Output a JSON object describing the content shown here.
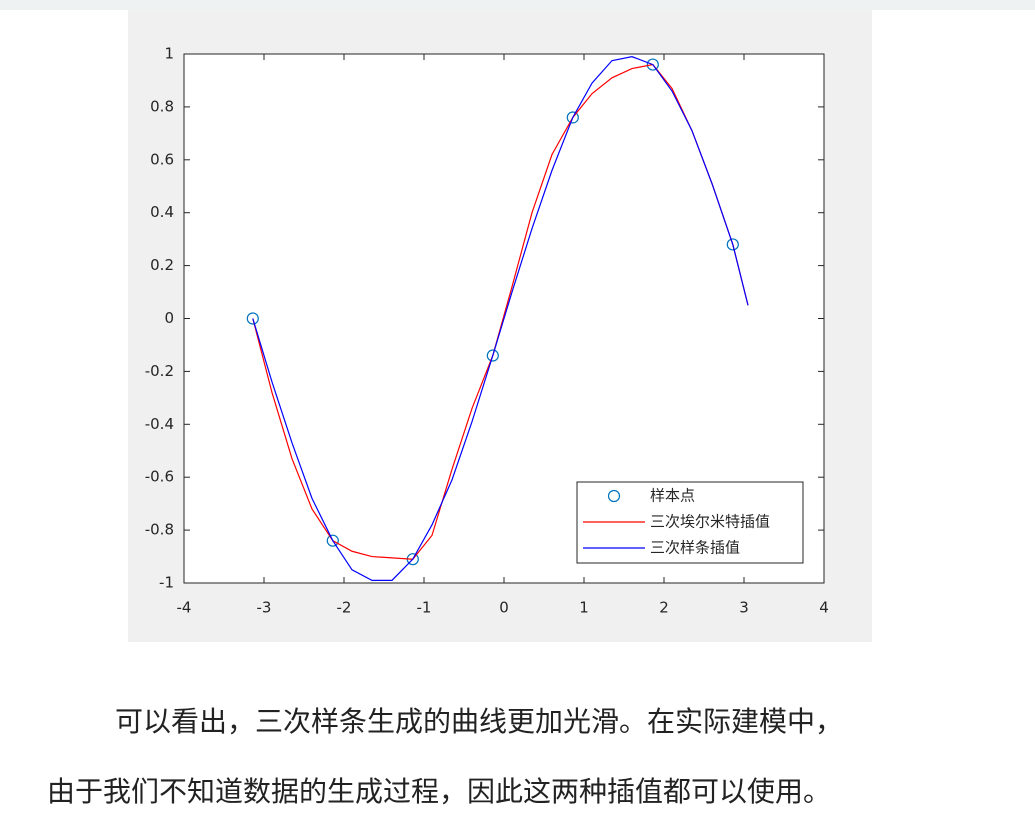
{
  "chart_data": {
    "type": "line",
    "xlim": [
      -4,
      4
    ],
    "xticks": [
      -4,
      -3,
      -2,
      -1,
      0,
      1,
      2,
      3,
      4
    ],
    "ylim": [
      -1,
      1
    ],
    "yticks": [
      -1,
      -0.8,
      -0.6,
      -0.4,
      -0.2,
      0,
      0.2,
      0.4,
      0.6,
      0.8,
      1
    ],
    "legend": "lower right",
    "series": [
      {
        "name": "样本点",
        "color": "#0072bd",
        "marker": "o",
        "line": false,
        "x": [
          -3.14,
          -2.14,
          -1.14,
          -0.14,
          0.86,
          1.86,
          2.86
        ],
        "values": [
          0,
          -0.84,
          -0.91,
          -0.14,
          0.76,
          0.96,
          0.28
        ]
      },
      {
        "name": "三次埃尔米特插值",
        "color": "#ff0000",
        "line": true,
        "x": [
          -3.14,
          -2.9,
          -2.65,
          -2.4,
          -2.14,
          -1.9,
          -1.65,
          -1.4,
          -1.14,
          -0.9,
          -0.65,
          -0.4,
          -0.14,
          0.1,
          0.35,
          0.6,
          0.86,
          1.1,
          1.35,
          1.6,
          1.86,
          2.1,
          2.35,
          2.6,
          2.86,
          3.05
        ],
        "values": [
          0,
          -0.28,
          -0.53,
          -0.72,
          -0.84,
          -0.88,
          -0.9,
          -0.905,
          -0.91,
          -0.82,
          -0.57,
          -0.34,
          -0.14,
          0.12,
          0.4,
          0.62,
          0.76,
          0.85,
          0.91,
          0.945,
          0.96,
          0.87,
          0.71,
          0.51,
          0.28,
          0.05
        ]
      },
      {
        "name": "三次样条插值",
        "color": "#0000ff",
        "line": true,
        "x": [
          -3.14,
          -2.9,
          -2.65,
          -2.4,
          -2.14,
          -1.9,
          -1.65,
          -1.4,
          -1.14,
          -0.9,
          -0.65,
          -0.4,
          -0.14,
          0.1,
          0.35,
          0.6,
          0.86,
          1.1,
          1.35,
          1.6,
          1.86,
          2.1,
          2.35,
          2.6,
          2.86,
          3.05
        ],
        "values": [
          0,
          -0.24,
          -0.47,
          -0.68,
          -0.84,
          -0.95,
          -0.99,
          -0.99,
          -0.91,
          -0.78,
          -0.61,
          -0.39,
          -0.14,
          0.1,
          0.34,
          0.56,
          0.76,
          0.89,
          0.975,
          0.99,
          0.96,
          0.86,
          0.71,
          0.51,
          0.28,
          0.05
        ]
      }
    ]
  },
  "paragraph": {
    "lines": [
      "可以看出，三次样条生成的曲线更加光滑。在实际建模中，",
      "由于我们不知道数据的生成过程，因此这两种插值都可以使用。"
    ]
  }
}
